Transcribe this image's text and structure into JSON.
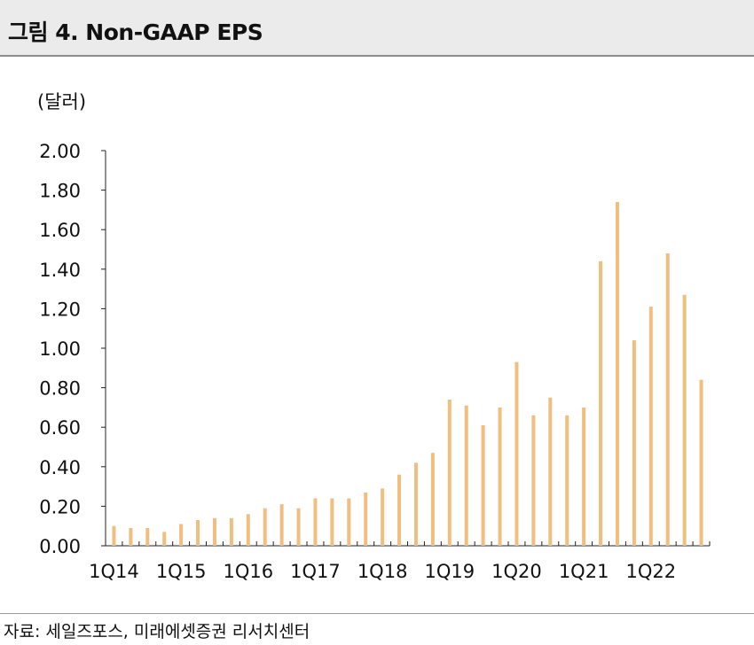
{
  "header": {
    "title": "그림 4. Non-GAAP EPS"
  },
  "footer": {
    "source": "자료: 세일즈포스, 미래에셋증권 리서치센터"
  },
  "chart_data": {
    "type": "bar",
    "ylabel": "(달러)",
    "ylim": [
      0,
      2.0
    ],
    "yticks": [
      "0.00",
      "0.20",
      "0.40",
      "0.60",
      "0.80",
      "1.00",
      "1.20",
      "1.40",
      "1.60",
      "1.80",
      "2.00"
    ],
    "xtick_labels": [
      "1Q14",
      "1Q15",
      "1Q16",
      "1Q17",
      "1Q18",
      "1Q19",
      "1Q20",
      "1Q21",
      "1Q22"
    ],
    "grid": false,
    "bar_color": "#f0be7e",
    "categories": [
      "1Q14",
      "2Q14",
      "3Q14",
      "4Q14",
      "1Q15",
      "2Q15",
      "3Q15",
      "4Q15",
      "1Q16",
      "2Q16",
      "3Q16",
      "4Q16",
      "1Q17",
      "2Q17",
      "3Q17",
      "4Q17",
      "1Q18",
      "2Q18",
      "3Q18",
      "4Q18",
      "1Q19",
      "2Q19",
      "3Q19",
      "4Q19",
      "1Q20",
      "2Q20",
      "3Q20",
      "4Q20",
      "1Q21",
      "2Q21",
      "3Q21",
      "4Q21",
      "1Q22",
      "2Q22",
      "3Q22",
      "4Q22"
    ],
    "values": [
      0.1,
      0.09,
      0.09,
      0.07,
      0.11,
      0.13,
      0.14,
      0.14,
      0.16,
      0.19,
      0.21,
      0.19,
      0.24,
      0.24,
      0.24,
      0.27,
      0.29,
      0.36,
      0.42,
      0.47,
      0.74,
      0.71,
      0.61,
      0.7,
      0.93,
      0.66,
      0.75,
      0.66,
      0.7,
      1.44,
      1.74,
      1.04,
      1.21,
      1.48,
      1.27,
      0.84
    ]
  }
}
